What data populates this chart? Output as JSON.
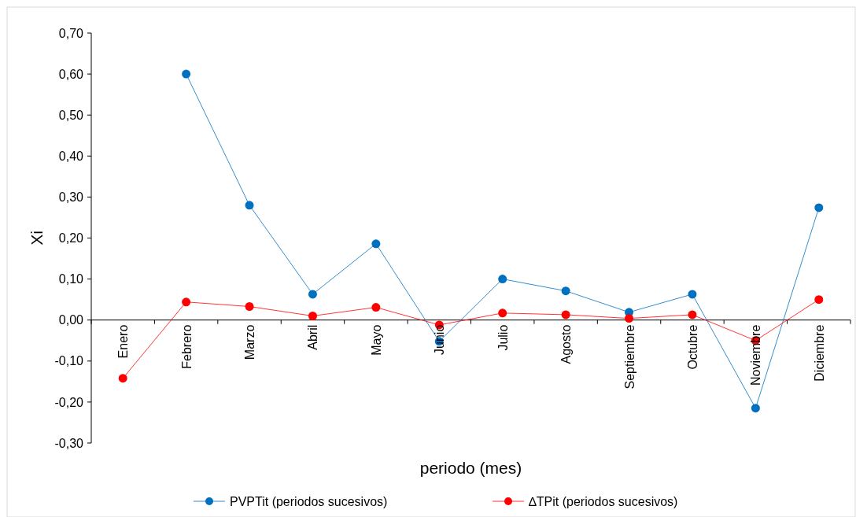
{
  "chart_data": {
    "type": "line",
    "xlabel": "periodo (mes)",
    "ylabel": "Xi",
    "categories": [
      "Enero",
      "Febrero",
      "Marzo",
      "Abril",
      "Mayo",
      "Junio",
      "Julio",
      "Agosto",
      "Septiembre",
      "Octubre",
      "Noviembre",
      "Diciembre"
    ],
    "series": [
      {
        "name": "PVPTit (periodos sucesivos)",
        "color": "#0070c0",
        "values": [
          null,
          0.6,
          0.28,
          0.063,
          0.186,
          -0.052,
          0.1,
          0.071,
          0.019,
          0.063,
          -0.215,
          0.274
        ]
      },
      {
        "name": "∆TPit (periodos sucesivos)",
        "color": "#ff0000",
        "values": [
          -0.142,
          0.044,
          0.033,
          0.01,
          0.031,
          -0.012,
          0.017,
          0.013,
          0.004,
          0.013,
          -0.05,
          0.05
        ]
      }
    ],
    "ylim": [
      -0.3,
      0.7
    ],
    "yticks": [
      {
        "value": -0.3,
        "label": "-0,30"
      },
      {
        "value": -0.2,
        "label": "-0,20"
      },
      {
        "value": -0.1,
        "label": "-0,10"
      },
      {
        "value": 0,
        "label": "0,00"
      },
      {
        "value": 0.1,
        "label": "0,10"
      },
      {
        "value": 0.2,
        "label": "0,20"
      },
      {
        "value": 0.3,
        "label": "0,30"
      },
      {
        "value": 0.4,
        "label": "0,40"
      },
      {
        "value": 0.5,
        "label": "0,50"
      },
      {
        "value": 0.6,
        "label": "0,60"
      },
      {
        "value": 0.7,
        "label": "0,70"
      }
    ],
    "grid": false,
    "legend": "bottom",
    "marker": "circle",
    "line_style": "solid"
  }
}
